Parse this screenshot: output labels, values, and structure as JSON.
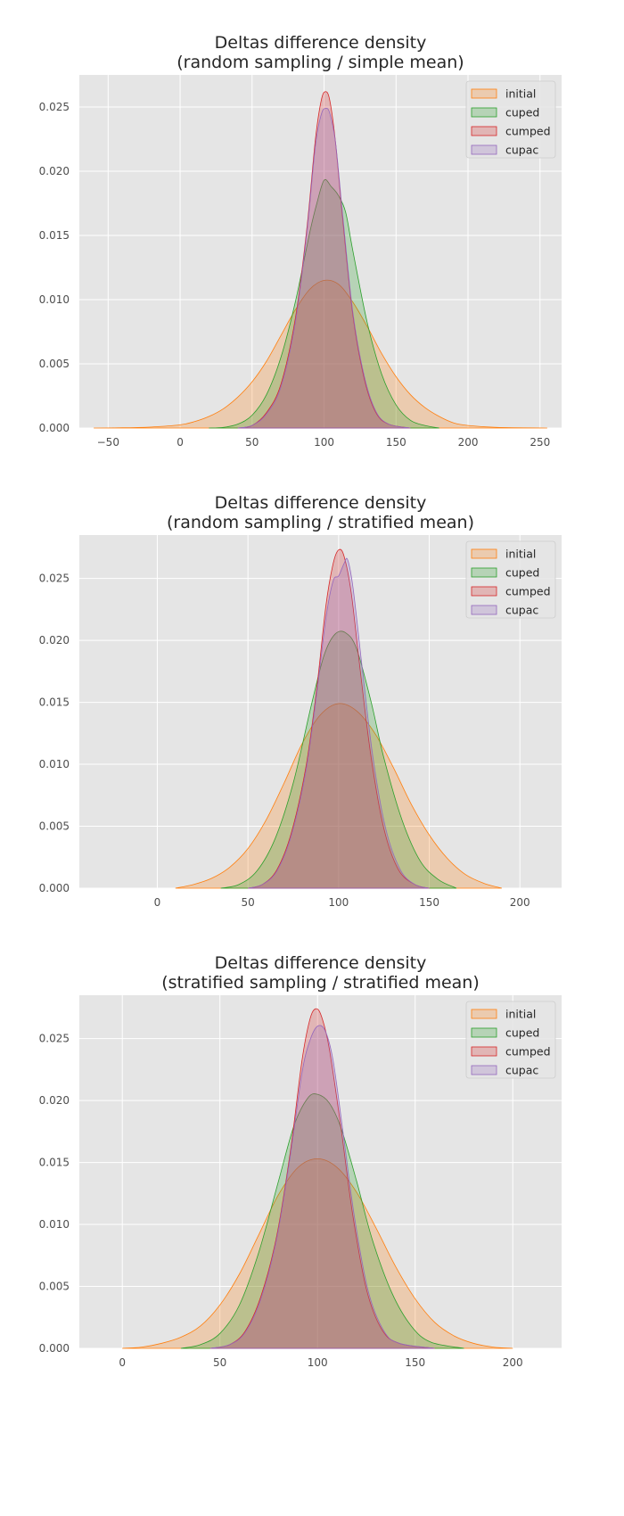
{
  "series_colors": {
    "initial": "#ff7f0e",
    "cuped": "#2ca02c",
    "cumped": "#d62728",
    "cupac": "#9467bd"
  },
  "plot_background": "#e5e5e5",
  "chart_data": [
    {
      "type": "area",
      "title": "Deltas difference density\n(random sampling / simple mean)",
      "xlabel": "",
      "ylabel": "",
      "grid": true,
      "legend_position": "top-right",
      "xlim": [
        -70,
        265
      ],
      "ylim": [
        0,
        0.0275
      ],
      "xticks": [
        -50,
        0,
        50,
        100,
        150,
        200,
        250
      ],
      "xtick_labels": [
        "−50",
        "0",
        "50",
        "100",
        "150",
        "200",
        "250"
      ],
      "yticks": [
        0,
        0.005,
        0.01,
        0.015,
        0.02,
        0.025
      ],
      "ytick_labels": [
        "0.000",
        "0.005",
        "0.010",
        "0.015",
        "0.020",
        "0.025"
      ],
      "series": [
        {
          "name": "initial",
          "color": "#ff7f0e",
          "x_min": -60,
          "x_max": 255,
          "points": [
            [
              -60,
              0
            ],
            [
              -40,
              2e-05
            ],
            [
              -20,
              8e-05
            ],
            [
              0,
              0.00025
            ],
            [
              10,
              0.0005
            ],
            [
              20,
              0.0009
            ],
            [
              30,
              0.0015
            ],
            [
              40,
              0.0024
            ],
            [
              50,
              0.0036
            ],
            [
              60,
              0.0052
            ],
            [
              70,
              0.0072
            ],
            [
              80,
              0.0092
            ],
            [
              90,
              0.0108
            ],
            [
              100,
              0.0115
            ],
            [
              110,
              0.0112
            ],
            [
              120,
              0.0098
            ],
            [
              130,
              0.0079
            ],
            [
              140,
              0.0058
            ],
            [
              150,
              0.004
            ],
            [
              160,
              0.0026
            ],
            [
              170,
              0.0016
            ],
            [
              180,
              0.0009
            ],
            [
              190,
              0.0004
            ],
            [
              200,
              0.0002
            ],
            [
              220,
              5e-05
            ],
            [
              255,
              0
            ]
          ]
        },
        {
          "name": "cuped",
          "color": "#2ca02c",
          "x_min": 20,
          "x_max": 180,
          "points": [
            [
              20,
              0
            ],
            [
              30,
              5e-05
            ],
            [
              40,
              0.0003
            ],
            [
              50,
              0.001
            ],
            [
              60,
              0.0026
            ],
            [
              70,
              0.0055
            ],
            [
              80,
              0.0098
            ],
            [
              90,
              0.0152
            ],
            [
              95,
              0.0175
            ],
            [
              100,
              0.0193
            ],
            [
              105,
              0.0188
            ],
            [
              110,
              0.0181
            ],
            [
              115,
              0.0168
            ],
            [
              120,
              0.0138
            ],
            [
              130,
              0.0082
            ],
            [
              140,
              0.0042
            ],
            [
              150,
              0.0018
            ],
            [
              160,
              0.0006
            ],
            [
              170,
              0.0002
            ],
            [
              180,
              0
            ]
          ]
        },
        {
          "name": "cumped",
          "color": "#d62728",
          "x_min": 40,
          "x_max": 160,
          "points": [
            [
              40,
              0
            ],
            [
              50,
              0.0002
            ],
            [
              60,
              0.0012
            ],
            [
              70,
              0.0034
            ],
            [
              80,
              0.0085
            ],
            [
              88,
              0.0155
            ],
            [
              94,
              0.0225
            ],
            [
              98,
              0.0255
            ],
            [
              101,
              0.0262
            ],
            [
              104,
              0.0255
            ],
            [
              108,
              0.0222
            ],
            [
              113,
              0.0162
            ],
            [
              120,
              0.0088
            ],
            [
              128,
              0.0038
            ],
            [
              136,
              0.0012
            ],
            [
              145,
              0.0003
            ],
            [
              160,
              0
            ]
          ]
        },
        {
          "name": "cupac",
          "color": "#9467bd",
          "x_min": 40,
          "x_max": 160,
          "points": [
            [
              40,
              0
            ],
            [
              50,
              0.0002
            ],
            [
              60,
              0.0011
            ],
            [
              70,
              0.0032
            ],
            [
              80,
              0.0082
            ],
            [
              88,
              0.0152
            ],
            [
              94,
              0.022
            ],
            [
              98,
              0.0244
            ],
            [
              101,
              0.0249
            ],
            [
              104,
              0.0245
            ],
            [
              108,
              0.0222
            ],
            [
              113,
              0.0165
            ],
            [
              120,
              0.009
            ],
            [
              128,
              0.004
            ],
            [
              136,
              0.0013
            ],
            [
              145,
              0.0003
            ],
            [
              160,
              0
            ]
          ]
        }
      ]
    },
    {
      "type": "area",
      "title": "Deltas difference density\n(random sampling / stratified mean)",
      "xlabel": "",
      "ylabel": "",
      "grid": true,
      "legend_position": "top-right",
      "xlim": [
        -43,
        223
      ],
      "ylim": [
        0,
        0.0285
      ],
      "xticks": [
        0,
        50,
        100,
        150,
        200
      ],
      "xtick_labels": [
        "0",
        "50",
        "100",
        "150",
        "200"
      ],
      "yticks": [
        0,
        0.005,
        0.01,
        0.015,
        0.02,
        0.025
      ],
      "ytick_labels": [
        "0.000",
        "0.005",
        "0.010",
        "0.015",
        "0.020",
        "0.025"
      ],
      "series": [
        {
          "name": "initial",
          "color": "#ff7f0e",
          "x_min": 10,
          "x_max": 190,
          "points": [
            [
              10,
              0
            ],
            [
              20,
              0.0003
            ],
            [
              30,
              0.0008
            ],
            [
              40,
              0.0017
            ],
            [
              50,
              0.0032
            ],
            [
              60,
              0.0055
            ],
            [
              70,
              0.0085
            ],
            [
              80,
              0.0117
            ],
            [
              90,
              0.014
            ],
            [
              100,
              0.0149
            ],
            [
              110,
              0.0143
            ],
            [
              120,
              0.0125
            ],
            [
              130,
              0.0098
            ],
            [
              140,
              0.0068
            ],
            [
              150,
              0.0043
            ],
            [
              160,
              0.0024
            ],
            [
              170,
              0.0011
            ],
            [
              180,
              0.0004
            ],
            [
              190,
              0
            ]
          ]
        },
        {
          "name": "cuped",
          "color": "#2ca02c",
          "x_min": 35,
          "x_max": 165,
          "points": [
            [
              35,
              0
            ],
            [
              45,
              0.0003
            ],
            [
              55,
              0.0014
            ],
            [
              65,
              0.004
            ],
            [
              75,
              0.0085
            ],
            [
              85,
              0.0148
            ],
            [
              92,
              0.0188
            ],
            [
              98,
              0.0205
            ],
            [
              104,
              0.0206
            ],
            [
              110,
              0.0193
            ],
            [
              118,
              0.015
            ],
            [
              125,
              0.0105
            ],
            [
              135,
              0.0055
            ],
            [
              145,
              0.0022
            ],
            [
              155,
              0.0007
            ],
            [
              165,
              0
            ]
          ]
        },
        {
          "name": "cumped",
          "color": "#d62728",
          "x_min": 50,
          "x_max": 150,
          "points": [
            [
              50,
              0
            ],
            [
              58,
              0.0003
            ],
            [
              66,
              0.0015
            ],
            [
              74,
              0.0045
            ],
            [
              82,
              0.0098
            ],
            [
              88,
              0.0162
            ],
            [
              93,
              0.0228
            ],
            [
              97,
              0.0262
            ],
            [
              100,
              0.0273
            ],
            [
              103,
              0.0268
            ],
            [
              107,
              0.0238
            ],
            [
              112,
              0.0175
            ],
            [
              118,
              0.0105
            ],
            [
              125,
              0.0048
            ],
            [
              133,
              0.0015
            ],
            [
              142,
              0.0003
            ],
            [
              150,
              0
            ]
          ]
        },
        {
          "name": "cupac",
          "color": "#9467bd",
          "x_min": 50,
          "x_max": 150,
          "points": [
            [
              50,
              0
            ],
            [
              58,
              0.0003
            ],
            [
              66,
              0.0014
            ],
            [
              74,
              0.0043
            ],
            [
              82,
              0.0095
            ],
            [
              88,
              0.0158
            ],
            [
              93,
              0.0218
            ],
            [
              97,
              0.0248
            ],
            [
              100,
              0.0252
            ],
            [
              103,
              0.0262
            ],
            [
              105,
              0.0265
            ],
            [
              108,
              0.0242
            ],
            [
              113,
              0.0178
            ],
            [
              119,
              0.0105
            ],
            [
              126,
              0.0048
            ],
            [
              134,
              0.0015
            ],
            [
              142,
              0.0003
            ],
            [
              150,
              0
            ]
          ]
        }
      ]
    },
    {
      "type": "area",
      "title": "Deltas difference density\n(stratified sampling / stratified mean)",
      "xlabel": "",
      "ylabel": "",
      "grid": true,
      "legend_position": "top-right",
      "xlim": [
        -22,
        225
      ],
      "ylim": [
        0,
        0.0285
      ],
      "xticks": [
        0,
        50,
        100,
        150,
        200
      ],
      "xtick_labels": [
        "0",
        "50",
        "100",
        "150",
        "200"
      ],
      "yticks": [
        0,
        0.005,
        0.01,
        0.015,
        0.02,
        0.025
      ],
      "ytick_labels": [
        "0.000",
        "0.005",
        "0.010",
        "0.015",
        "0.020",
        "0.025"
      ],
      "series": [
        {
          "name": "initial",
          "color": "#ff7f0e",
          "x_min": 0,
          "x_max": 200,
          "points": [
            [
              0,
              0
            ],
            [
              10,
              0.0001
            ],
            [
              20,
              0.0004
            ],
            [
              30,
              0.0009
            ],
            [
              40,
              0.0018
            ],
            [
              50,
              0.0035
            ],
            [
              60,
              0.006
            ],
            [
              70,
              0.0092
            ],
            [
              80,
              0.0124
            ],
            [
              90,
              0.0146
            ],
            [
              100,
              0.0153
            ],
            [
              110,
              0.0146
            ],
            [
              120,
              0.0126
            ],
            [
              130,
              0.0097
            ],
            [
              140,
              0.0066
            ],
            [
              150,
              0.004
            ],
            [
              160,
              0.0021
            ],
            [
              170,
              0.001
            ],
            [
              180,
              0.0004
            ],
            [
              190,
              0.0001
            ],
            [
              200,
              0
            ]
          ]
        },
        {
          "name": "cuped",
          "color": "#2ca02c",
          "x_min": 30,
          "x_max": 175,
          "points": [
            [
              30,
              0
            ],
            [
              40,
              0.0003
            ],
            [
              50,
              0.0012
            ],
            [
              60,
              0.0035
            ],
            [
              70,
              0.0078
            ],
            [
              80,
              0.0135
            ],
            [
              88,
              0.018
            ],
            [
              95,
              0.0202
            ],
            [
              100,
              0.0205
            ],
            [
              106,
              0.0198
            ],
            [
              112,
              0.0178
            ],
            [
              120,
              0.0135
            ],
            [
              128,
              0.0088
            ],
            [
              138,
              0.0045
            ],
            [
              148,
              0.0018
            ],
            [
              158,
              0.0005
            ],
            [
              175,
              0
            ]
          ]
        },
        {
          "name": "cumped",
          "color": "#d62728",
          "x_min": 45,
          "x_max": 160,
          "points": [
            [
              45,
              0
            ],
            [
              55,
              0.0003
            ],
            [
              63,
              0.0014
            ],
            [
              71,
              0.0042
            ],
            [
              79,
              0.009
            ],
            [
              86,
              0.0158
            ],
            [
              92,
              0.0232
            ],
            [
              96,
              0.0265
            ],
            [
              99,
              0.0274
            ],
            [
              102,
              0.0268
            ],
            [
              106,
              0.0242
            ],
            [
              112,
              0.0178
            ],
            [
              118,
              0.0108
            ],
            [
              125,
              0.0048
            ],
            [
              133,
              0.0015
            ],
            [
              142,
              0.0004
            ],
            [
              160,
              0
            ]
          ]
        },
        {
          "name": "cupac",
          "color": "#9467bd",
          "x_min": 45,
          "x_max": 160,
          "points": [
            [
              45,
              0
            ],
            [
              55,
              0.0003
            ],
            [
              63,
              0.0013
            ],
            [
              71,
              0.004
            ],
            [
              79,
              0.0088
            ],
            [
              86,
              0.0155
            ],
            [
              92,
              0.0222
            ],
            [
              96,
              0.0248
            ],
            [
              100,
              0.026
            ],
            [
              104,
              0.0256
            ],
            [
              108,
              0.0232
            ],
            [
              113,
              0.0175
            ],
            [
              119,
              0.0105
            ],
            [
              126,
              0.0046
            ],
            [
              134,
              0.0014
            ],
            [
              142,
              0.0004
            ],
            [
              160,
              0
            ]
          ]
        }
      ]
    }
  ]
}
